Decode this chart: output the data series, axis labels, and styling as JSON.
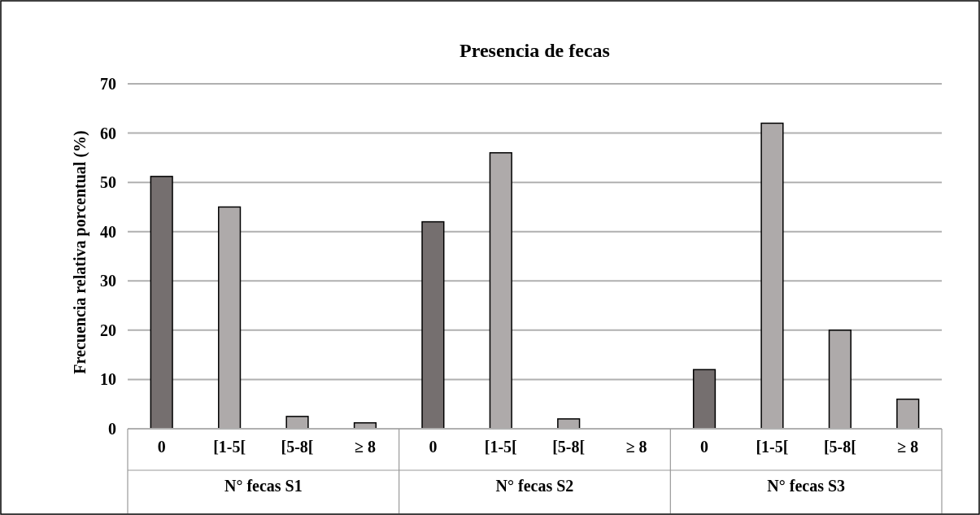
{
  "chart_data": {
    "type": "bar",
    "title": "Presencia de fecas",
    "ylabel": "Frecuencia relativa porcentual (%)",
    "categories": [
      "0",
      "[1-5[",
      "[5-8[",
      "≥ 8",
      "0",
      "[1-5[",
      "[5-8[",
      "≥ 8",
      "0",
      "[1-5[",
      "[5-8[",
      "≥ 8"
    ],
    "values": [
      51.2,
      45,
      2.5,
      1.2,
      42,
      56,
      2,
      null,
      12,
      62,
      20,
      6
    ],
    "colors": [
      "#756f6f",
      "#aeaaaa",
      "#aeaaaa",
      "#aeaaaa",
      "#756f6f",
      "#aeaaaa",
      "#aeaaaa",
      null,
      "#756f6f",
      "#aeaaaa",
      "#aeaaaa",
      "#aeaaaa"
    ],
    "annotations": [
      "N° fecas S1",
      "N° fecas S2",
      "N° fecas S3"
    ],
    "ylim": [
      0,
      70
    ],
    "yticks": [
      0,
      10,
      20,
      30,
      40,
      50,
      60,
      70
    ],
    "grid": "y"
  }
}
